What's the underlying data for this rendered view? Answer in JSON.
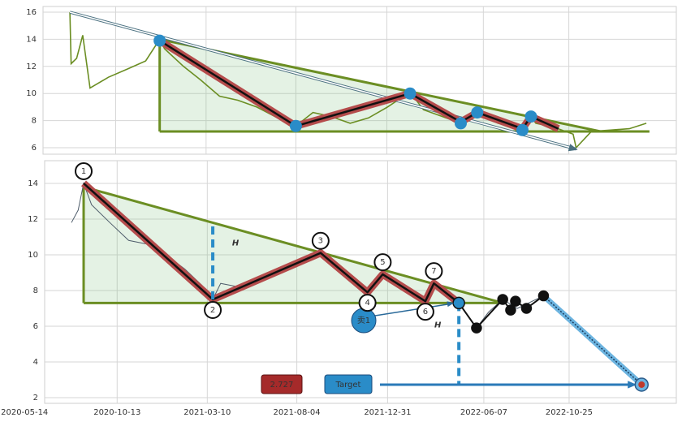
{
  "chart_data": [
    {
      "type": "line",
      "xlim": [
        "2020-06-16",
        "2023-04-19"
      ],
      "ylim": [
        5.52,
        16.42
      ],
      "yticks": [
        6,
        8,
        10,
        12,
        14,
        16
      ],
      "grid": true,
      "series": [
        {
          "color": "#6b8e23",
          "x": [
            "2020-07-30",
            "2020-08-01",
            "2020-08-10",
            "2020-08-20",
            "2020-09-01",
            "2020-10-01",
            "2020-11-01",
            "2020-12-01",
            "2020-12-24",
            "2021-01-01",
            "2021-02-01",
            "2021-03-01",
            "2021-04-01",
            "2021-05-01",
            "2021-06-01",
            "2021-07-01",
            "2021-08-04",
            "2021-09-01",
            "2021-10-01",
            "2021-11-01",
            "2021-12-01",
            "2022-01-01",
            "2022-02-07",
            "2022-03-01",
            "2022-04-01",
            "2022-05-01",
            "2022-05-28",
            "2022-07-01",
            "2022-08-10",
            "2022-08-24",
            "2022-09-01",
            "2022-10-01",
            "2022-11-01",
            "2022-11-06",
            "2022-12-01",
            "2023-01-01",
            "2023-02-01",
            "2023-03-01"
          ],
          "values": [
            16,
            12.2,
            12.6,
            14.3,
            10.4,
            11.2,
            11.8,
            12.4,
            14.0,
            13.3,
            12.0,
            11.0,
            9.8,
            9.5,
            9.0,
            8.3,
            7.6,
            8.6,
            8.3,
            7.8,
            8.2,
            9.0,
            10.1,
            8.8,
            8.3,
            7.8,
            8.6,
            7.8,
            7.4,
            8.3,
            7.8,
            7.5,
            7.0,
            6.0,
            7.2,
            7.3,
            7.4,
            7.8
          ]
        }
      ],
      "triangle": {
        "start": "2020-12-24",
        "end": "2022-12-16",
        "base_end": "2023-03-06",
        "high": 14.0,
        "low": 7.2
      },
      "zigzag": {
        "x": [
          "2020-12-24",
          "2021-08-04",
          "2022-02-07",
          "2022-05-01",
          "2022-05-28",
          "2022-08-10",
          "2022-08-24",
          "2022-10-08"
        ],
        "values": [
          13.9,
          7.6,
          10.0,
          7.9,
          8.6,
          7.4,
          8.3,
          7.4
        ]
      },
      "pivots": {
        "x": [
          "2020-12-24",
          "2021-08-04",
          "2022-02-07",
          "2022-05-01",
          "2022-05-28",
          "2022-08-10",
          "2022-08-24"
        ],
        "values": [
          13.9,
          7.6,
          10.0,
          7.8,
          8.6,
          7.3,
          8.3
        ]
      },
      "arrow": {
        "x": [
          "2020-07-30",
          "2022-11-06"
        ],
        "values": [
          16,
          5.9
        ]
      }
    },
    {
      "type": "line",
      "xlim": [
        "2020-06-16",
        "2023-04-19"
      ],
      "ylim": [
        1.68,
        15.27
      ],
      "yticks": [
        2,
        4,
        6,
        8,
        10,
        12,
        14
      ],
      "grid": true,
      "xticks": [
        "2020-05-14",
        "2020-10-13",
        "2021-03-10",
        "2021-08-04",
        "2021-12-31",
        "2022-06-07",
        "2022-10-25"
      ],
      "series": [
        {
          "color": "#4f5d6b",
          "x": [
            "2020-07-30",
            "2020-08-10",
            "2020-08-19",
            "2020-09-01",
            "2020-10-01",
            "2020-11-01",
            "2020-12-01",
            "2021-01-01",
            "2021-02-01",
            "2021-03-01",
            "2021-03-19",
            "2021-04-01",
            "2021-05-01",
            "2021-06-01",
            "2021-07-01",
            "2021-08-01",
            "2021-09-12",
            "2021-10-01",
            "2021-11-01",
            "2021-11-28",
            "2021-12-23",
            "2022-01-01",
            "2022-02-01",
            "2022-03-03",
            "2022-03-17",
            "2022-04-01",
            "2022-04-27",
            "2022-05-26",
            "2022-06-15",
            "2022-07-08",
            "2022-08-01",
            "2022-09-13"
          ],
          "values": [
            11.8,
            12.5,
            14.0,
            12.8,
            11.8,
            10.8,
            10.6,
            10.0,
            9.2,
            8.3,
            7.5,
            8.4,
            8.2,
            8.6,
            9.0,
            9.6,
            10.1,
            9.5,
            8.6,
            7.9,
            8.9,
            8.5,
            8.0,
            7.4,
            8.4,
            7.9,
            7.3,
            5.9,
            6.8,
            7.5,
            7.0,
            7.7
          ]
        }
      ],
      "triangle": {
        "start": "2020-08-19",
        "end": "2022-07-08",
        "base_end": "2022-07-08",
        "high": 13.8,
        "low": 7.3
      },
      "zigzag": {
        "x": [
          "2020-08-19",
          "2021-03-19",
          "2021-09-12",
          "2021-11-28",
          "2021-12-23",
          "2022-03-03",
          "2022-03-17",
          "2022-04-27"
        ],
        "values": [
          14.0,
          7.5,
          10.1,
          7.9,
          8.9,
          7.4,
          8.4,
          7.3
        ],
        "labels": [
          "1",
          "2",
          "3",
          "4",
          "5",
          "6",
          "7",
          null
        ]
      },
      "breakout": {
        "x": [
          "2022-04-27",
          "2022-05-26",
          "2022-07-08",
          "2022-07-21",
          "2022-07-29",
          "2022-08-16",
          "2022-09-13"
        ],
        "values": [
          7.3,
          5.9,
          7.5,
          6.9,
          7.4,
          7.0,
          7.7
        ]
      },
      "projection": {
        "x": [
          "2022-09-13",
          "2023-02-21"
        ],
        "values": [
          7.7,
          2.727
        ]
      },
      "heights": [
        {
          "x": "2021-03-19",
          "values": [
            7.5,
            11.8
          ],
          "label": "H"
        },
        {
          "x": "2022-04-27",
          "values": [
            7.3,
            2.727
          ],
          "label": "H"
        }
      ],
      "sell": {
        "label": "卖1",
        "x": "2022-04-27",
        "value": 7.3
      },
      "target": {
        "label": "Target",
        "value": 2.727
      }
    }
  ]
}
